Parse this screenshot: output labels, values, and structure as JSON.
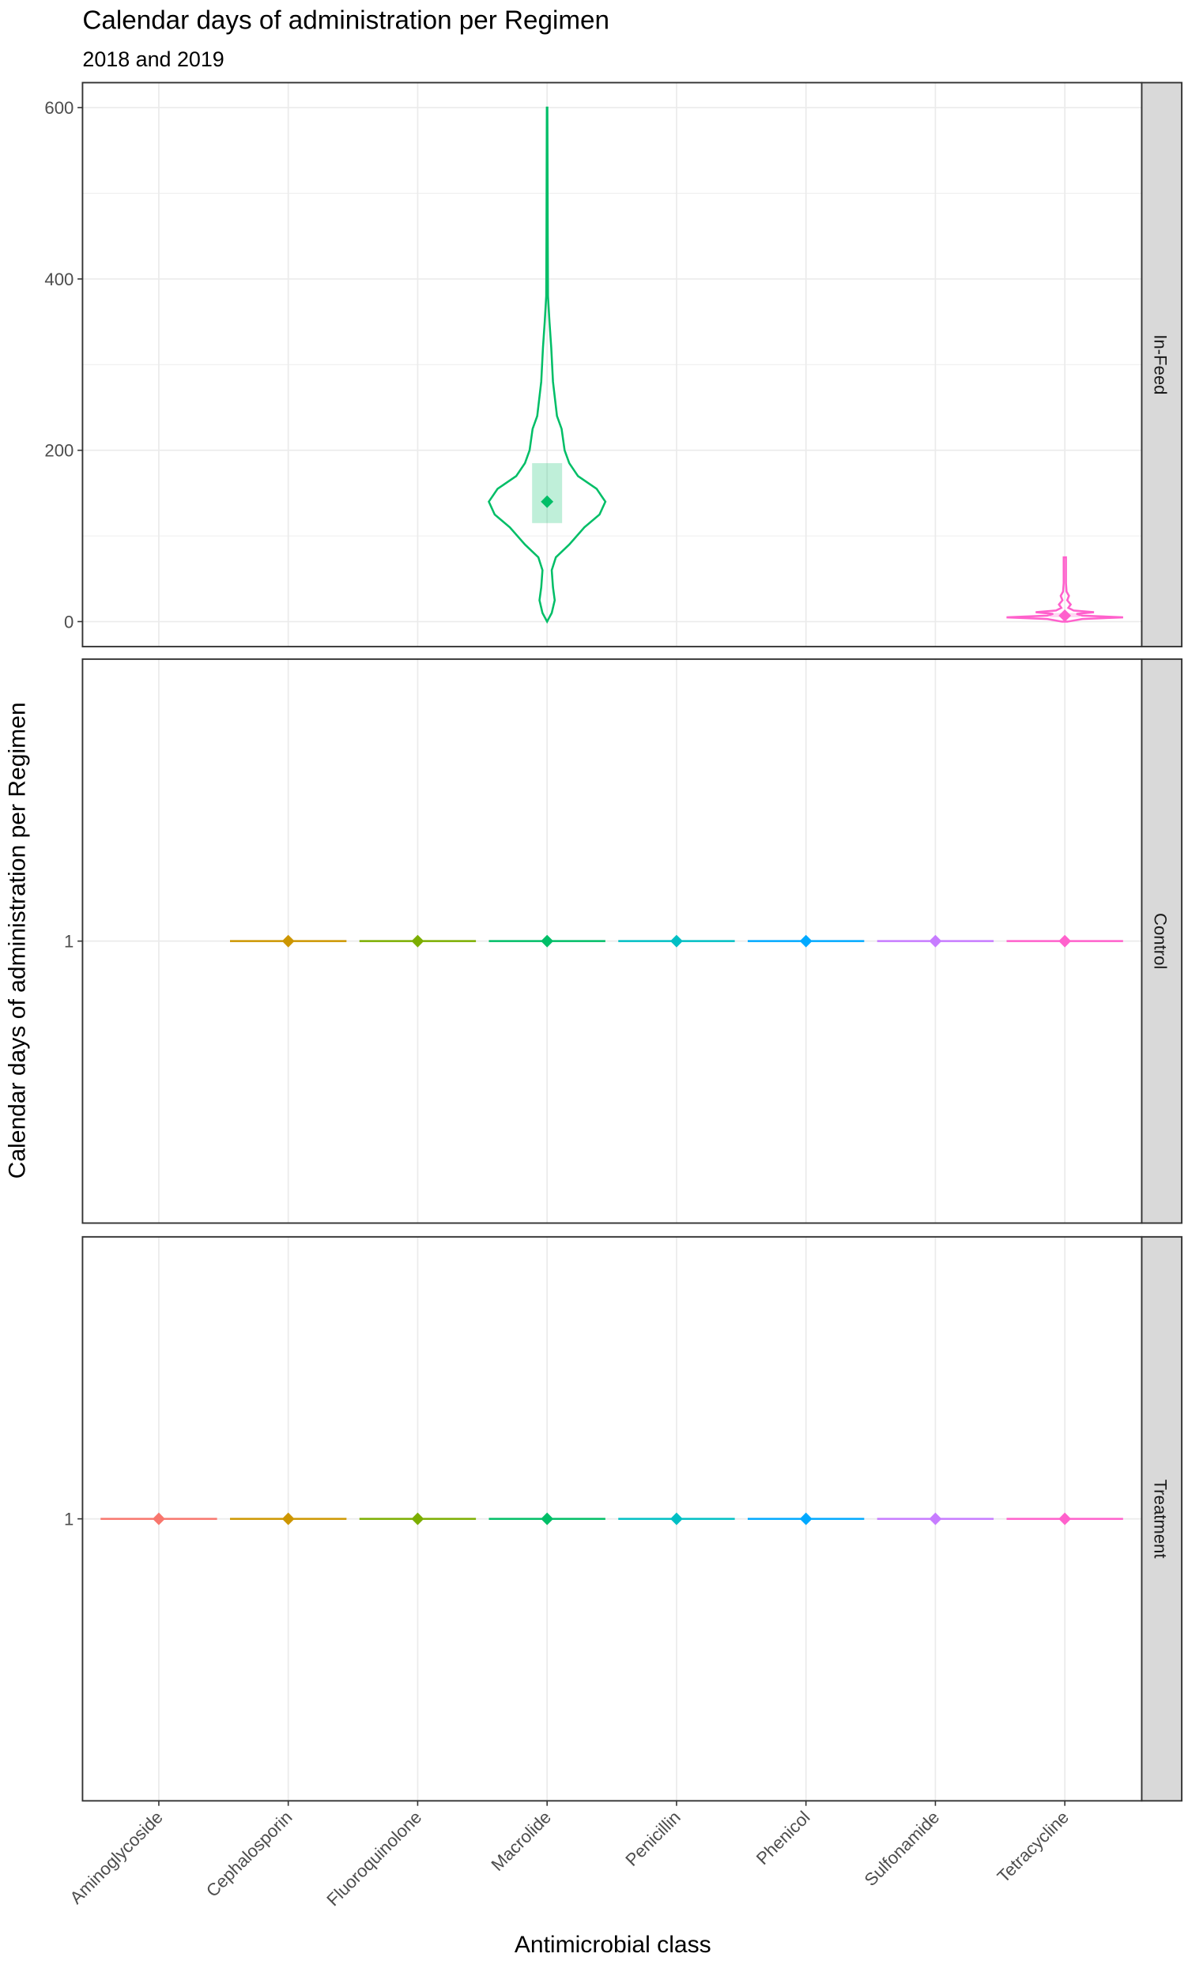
{
  "chart_data": {
    "type": "violin",
    "title": "Calendar days of administration per Regimen",
    "subtitle": "2018 and 2019",
    "xlabel": "Antimicrobial class",
    "ylabel": "Calendar days of administration per Regimen",
    "categories": [
      "Aminoglycoside",
      "Cephalosporin",
      "Fluoroquinolone",
      "Macrolide",
      "Penicillin",
      "Phenicol",
      "Sulfonamide",
      "Tetracycline"
    ],
    "colors": [
      "#F8766D",
      "#CD9600",
      "#7CAE00",
      "#00BE67",
      "#00BFC4",
      "#00A9FF",
      "#C77CFF",
      "#FF61CC"
    ],
    "grid": true,
    "facets": [
      {
        "label": "In-Feed",
        "ylim": [
          -30,
          630
        ],
        "yticks": [
          0,
          200,
          400,
          600
        ],
        "groups": [
          {
            "category": "Macrolide",
            "median": 140,
            "box": [
              115,
              185
            ],
            "density": [
              [
                0,
                0
              ],
              [
                10,
                0.08
              ],
              [
                25,
                0.13
              ],
              [
                40,
                0.1
              ],
              [
                60,
                0.08
              ],
              [
                75,
                0.15
              ],
              [
                90,
                0.38
              ],
              [
                110,
                0.64
              ],
              [
                125,
                0.9
              ],
              [
                140,
                1
              ],
              [
                155,
                0.85
              ],
              [
                170,
                0.53
              ],
              [
                185,
                0.38
              ],
              [
                200,
                0.3
              ],
              [
                225,
                0.25
              ],
              [
                240,
                0.17
              ],
              [
                280,
                0.1
              ],
              [
                320,
                0.07
              ],
              [
                350,
                0.04
              ],
              [
                380,
                0.015
              ],
              [
                450,
                0.01
              ],
              [
                600,
                0.005
              ]
            ]
          },
          {
            "category": "Tetracycline",
            "median": 7,
            "box": [
              5,
              10
            ],
            "density": [
              [
                0,
                0.05
              ],
              [
                3,
                0.3
              ],
              [
                5,
                1
              ],
              [
                7,
                0.3
              ],
              [
                9,
                0.2
              ],
              [
                11,
                0.5
              ],
              [
                13,
                0.15
              ],
              [
                16,
                0.06
              ],
              [
                20,
                0.1
              ],
              [
                25,
                0.04
              ],
              [
                30,
                0.07
              ],
              [
                35,
                0.03
              ],
              [
                45,
                0.02
              ],
              [
                75,
                0.02
              ]
            ]
          }
        ]
      },
      {
        "label": "Control",
        "yticks": [
          1
        ],
        "groups": [
          {
            "category": "Cephalosporin",
            "median": 1
          },
          {
            "category": "Fluoroquinolone",
            "median": 1
          },
          {
            "category": "Macrolide",
            "median": 1
          },
          {
            "category": "Penicillin",
            "median": 1
          },
          {
            "category": "Phenicol",
            "median": 1
          },
          {
            "category": "Sulfonamide",
            "median": 1
          },
          {
            "category": "Tetracycline",
            "median": 1
          }
        ]
      },
      {
        "label": "Treatment",
        "yticks": [
          1
        ],
        "groups": [
          {
            "category": "Aminoglycoside",
            "median": 1
          },
          {
            "category": "Cephalosporin",
            "median": 1
          },
          {
            "category": "Fluoroquinolone",
            "median": 1
          },
          {
            "category": "Macrolide",
            "median": 1
          },
          {
            "category": "Penicillin",
            "median": 1
          },
          {
            "category": "Phenicol",
            "median": 1
          },
          {
            "category": "Sulfonamide",
            "median": 1
          },
          {
            "category": "Tetracycline",
            "median": 1
          }
        ]
      }
    ]
  }
}
